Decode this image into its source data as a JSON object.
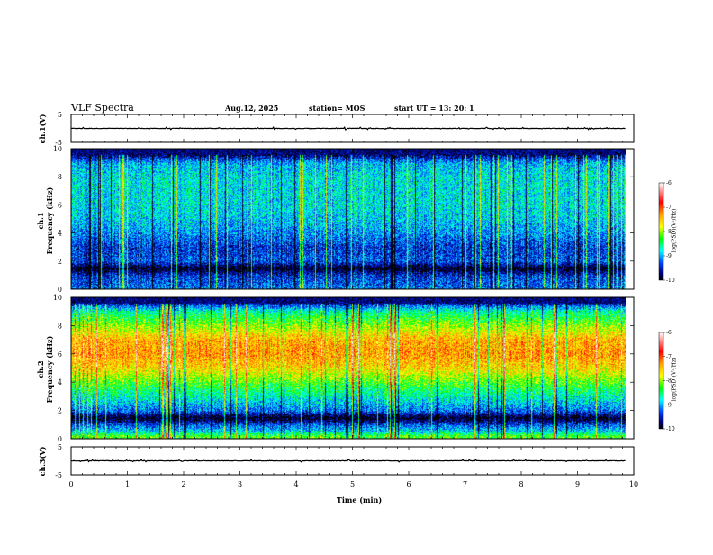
{
  "header": {
    "title": "VLF Spectra",
    "date": "Aug.12, 2025",
    "station": "station= MOS",
    "start": "start  UT  =   13: 20: 1"
  },
  "colorbar": {
    "label": "log(PSD)(V²/Hz)",
    "ticks": [
      "-6",
      "-7",
      "-8",
      "-9",
      "-10"
    ],
    "colors": [
      "#ffffff",
      "#ff0000",
      "#ffa000",
      "#ffff00",
      "#00ff00",
      "#00ffff",
      "#0040ff",
      "#000080",
      "#000000"
    ]
  },
  "chart_data": [
    {
      "type": "line",
      "panel": "ch.1(V)",
      "ylabel": "ch.1(V)",
      "ylim": [
        -5,
        5
      ],
      "yticks": [
        "5",
        "-5"
      ],
      "xlim": [
        0,
        10
      ],
      "x": [
        0,
        9.85
      ],
      "y": [
        0,
        0
      ]
    },
    {
      "type": "heatmap",
      "panel": "ch.1 spectrogram",
      "ylabel": "ch.1\nFrequency (kHz)",
      "ylabel_line1": "ch.1",
      "ylabel_line2": "Frequency (kHz)",
      "xlim": [
        0,
        10
      ],
      "ylim": [
        0,
        10
      ],
      "yticks": [
        "0",
        "2",
        "4",
        "6",
        "8",
        "10"
      ],
      "zlim": [
        -10,
        -6
      ],
      "zlabel": "log(PSD)(V²/Hz)",
      "data_end_min": 9.85,
      "freq_kHz": [
        0.2,
        0.5,
        1,
        1.5,
        2,
        3,
        4,
        5,
        6,
        7,
        8,
        9,
        9.8
      ],
      "mean_log_psd": [
        -9.2,
        -9.3,
        -9.4,
        -10,
        -9.3,
        -9.4,
        -9.1,
        -8.9,
        -8.8,
        -8.8,
        -8.8,
        -9.0,
        -10
      ]
    },
    {
      "type": "heatmap",
      "panel": "ch.2 spectrogram",
      "ylabel": "ch.2\nFrequency (kHz)",
      "ylabel_line1": "ch.2",
      "ylabel_line2": "Frequency (kHz)",
      "xlim": [
        0,
        10
      ],
      "ylim": [
        0,
        10
      ],
      "yticks": [
        "0",
        "2",
        "4",
        "6",
        "8",
        "10"
      ],
      "zlim": [
        -10,
        -6
      ],
      "zlabel": "log(PSD)(V²/Hz)",
      "data_end_min": 9.85,
      "freq_kHz": [
        0.2,
        0.5,
        1,
        1.5,
        2,
        3,
        4,
        5,
        6,
        7,
        8,
        9,
        9.8
      ],
      "mean_log_psd": [
        -8.2,
        -8.8,
        -9.3,
        -10,
        -9.2,
        -8.7,
        -8.2,
        -7.6,
        -7.3,
        -7.4,
        -8.0,
        -8.6,
        -9.8
      ]
    },
    {
      "type": "line",
      "panel": "ch.3(V)",
      "ylabel": "ch.3(V)",
      "ylim": [
        -5,
        5
      ],
      "yticks": [
        "5",
        "-5"
      ],
      "xlim": [
        0,
        10
      ],
      "xlabel": "Time  (min)",
      "xticks": [
        "0",
        "1",
        "2",
        "3",
        "4",
        "5",
        "6",
        "7",
        "8",
        "9",
        "10"
      ],
      "x": [
        0,
        9.85
      ],
      "y": [
        0,
        0
      ]
    }
  ]
}
